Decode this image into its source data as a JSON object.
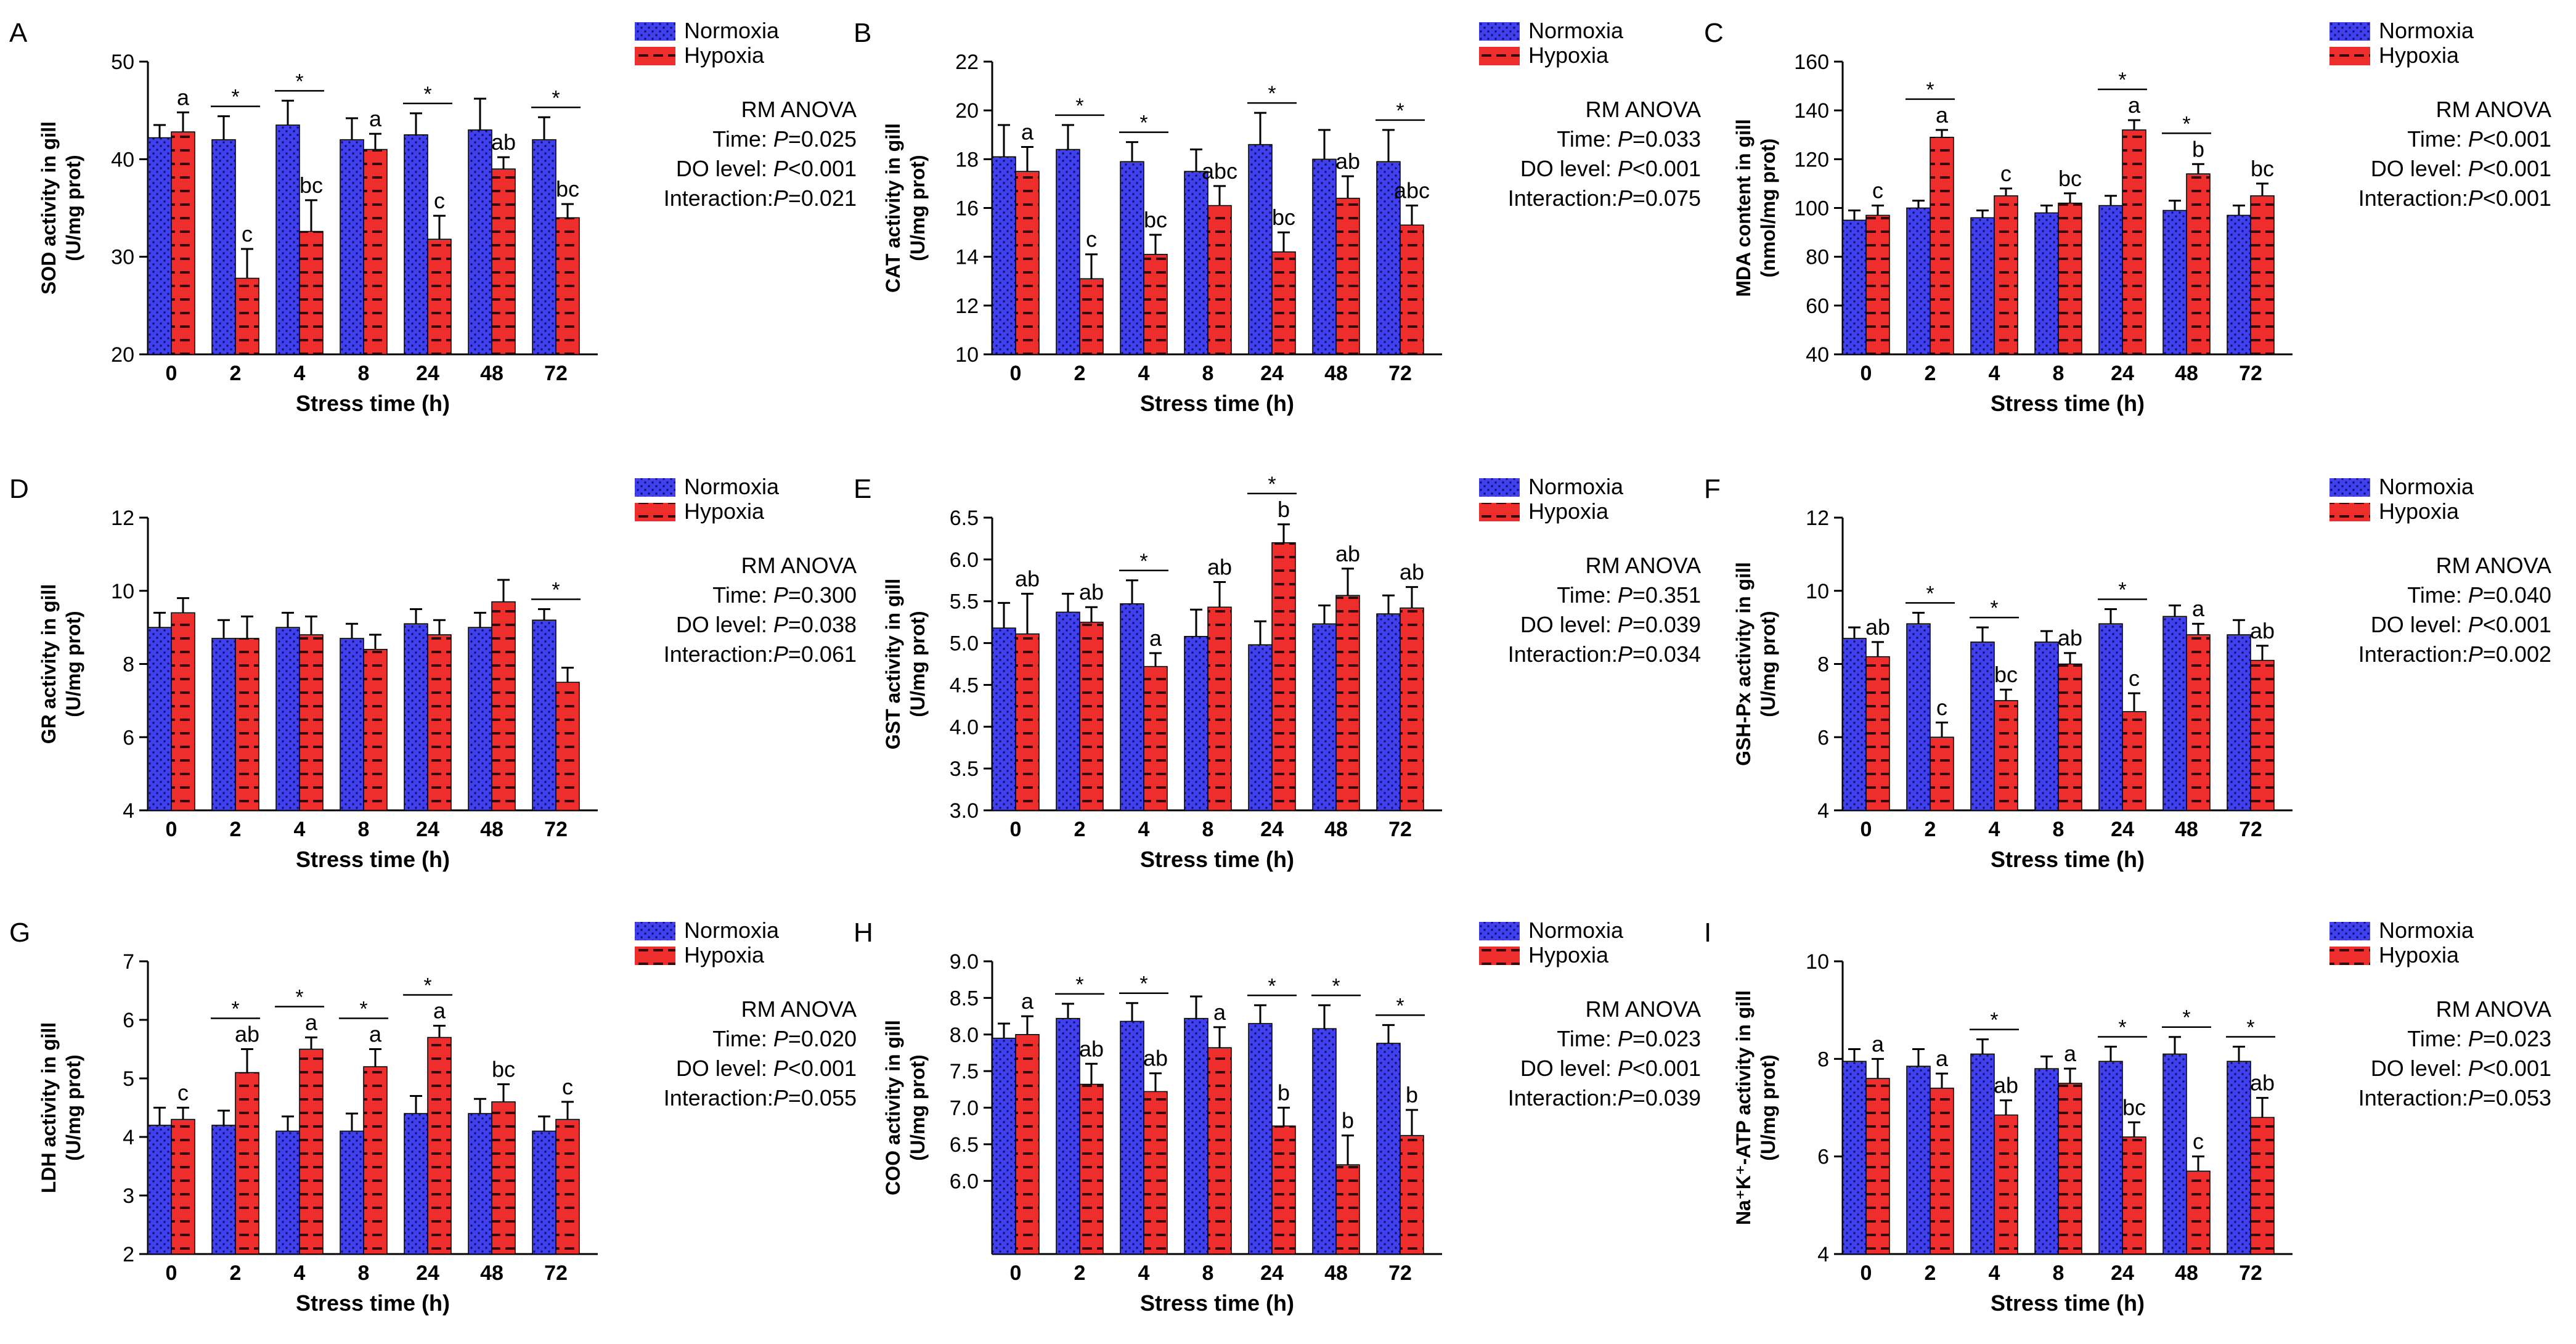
{
  "legend": {
    "normoxia_label": "Normoxia",
    "hypoxia_label": "Hypoxia"
  },
  "colors": {
    "normoxia": "#4040ee",
    "hypoxia": "#ee2d2d",
    "normoxia_dot": "#10106a",
    "hypoxia_stripe": "#3a0a0a"
  },
  "chart_data": [
    {
      "panel": "A",
      "type": "bar",
      "ylabel": "SOD activity in gill",
      "ylabel2": "(U/mg prot)",
      "xlabel": "Stress time (h)",
      "categories": [
        "0",
        "2",
        "4",
        "8",
        "24",
        "48",
        "72"
      ],
      "ylim": [
        20,
        50
      ],
      "yticks": [
        "20",
        "30",
        "40",
        "50"
      ],
      "series": [
        {
          "name": "Normoxia",
          "values": [
            42.2,
            42.0,
            43.5,
            42.0,
            42.5,
            43.0,
            42.0
          ],
          "errors": [
            1.3,
            2.4,
            2.5,
            2.2,
            2.2,
            3.2,
            2.3
          ]
        },
        {
          "name": "Hypoxia",
          "values": [
            42.8,
            27.8,
            32.6,
            41.0,
            31.8,
            39.0,
            34.0
          ],
          "errors": [
            2.0,
            3.0,
            3.2,
            1.6,
            2.4,
            1.2,
            1.4
          ]
        }
      ],
      "letters": [
        "a",
        "c",
        "bc",
        "a",
        "c",
        "ab",
        "bc"
      ],
      "significant": [
        false,
        true,
        true,
        false,
        true,
        false,
        true
      ],
      "stats_title": "RM ANOVA",
      "stats": [
        {
          "label": "Time: ",
          "p": "P",
          "value": "=0.025"
        },
        {
          "label": "DO level: ",
          "p": "P",
          "value": "<0.001"
        },
        {
          "label": "Interaction:",
          "p": "P",
          "value": "=0.021"
        }
      ]
    },
    {
      "panel": "B",
      "type": "bar",
      "ylabel": "CAT activity in gill",
      "ylabel2": "(U/mg prot)",
      "xlabel": "Stress time (h)",
      "categories": [
        "0",
        "2",
        "4",
        "8",
        "24",
        "48",
        "72"
      ],
      "ylim": [
        10,
        22
      ],
      "yticks": [
        "10",
        "12",
        "14",
        "16",
        "18",
        "20",
        "22"
      ],
      "series": [
        {
          "name": "Normoxia",
          "values": [
            18.1,
            18.4,
            17.9,
            17.5,
            18.6,
            18.0,
            17.9
          ],
          "errors": [
            1.3,
            1.0,
            0.8,
            0.9,
            1.3,
            1.2,
            1.3
          ]
        },
        {
          "name": "Hypoxia",
          "values": [
            17.5,
            13.1,
            14.1,
            16.1,
            14.2,
            16.4,
            15.3
          ],
          "errors": [
            1.0,
            1.0,
            0.8,
            0.8,
            0.8,
            0.9,
            0.8
          ]
        }
      ],
      "letters": [
        "a",
        "c",
        "bc",
        "abc",
        "bc",
        "ab",
        "abc"
      ],
      "significant": [
        false,
        true,
        true,
        false,
        true,
        false,
        true
      ],
      "stats_title": "RM ANOVA",
      "stats": [
        {
          "label": "Time: ",
          "p": "P",
          "value": "=0.033"
        },
        {
          "label": "DO level: ",
          "p": "P",
          "value": "<0.001"
        },
        {
          "label": "Interaction:",
          "p": "P",
          "value": "=0.075"
        }
      ]
    },
    {
      "panel": "C",
      "type": "bar",
      "ylabel": "MDA content in gill",
      "ylabel2": "(nmol/mg prot)",
      "xlabel": "Stress time (h)",
      "categories": [
        "0",
        "2",
        "4",
        "8",
        "24",
        "48",
        "72"
      ],
      "ylim": [
        40,
        160
      ],
      "yticks": [
        "40",
        "60",
        "80",
        "100",
        "120",
        "140",
        "160"
      ],
      "series": [
        {
          "name": "Normoxia",
          "values": [
            95,
            100,
            96,
            98,
            101,
            99,
            97
          ],
          "errors": [
            4,
            3,
            3,
            3,
            4,
            4,
            4
          ]
        },
        {
          "name": "Hypoxia",
          "values": [
            97,
            129,
            105,
            102,
            132,
            114,
            105
          ],
          "errors": [
            4,
            3,
            3,
            4,
            4,
            4,
            5
          ]
        }
      ],
      "letters": [
        "c",
        "a",
        "c",
        "bc",
        "a",
        "b",
        "bc"
      ],
      "significant": [
        false,
        true,
        false,
        false,
        true,
        true,
        false
      ],
      "stats_title": "RM ANOVA",
      "stats": [
        {
          "label": "Time: ",
          "p": "P",
          "value": "<0.001"
        },
        {
          "label": "DO level: ",
          "p": "P",
          "value": "<0.001"
        },
        {
          "label": "Interaction:",
          "p": "P",
          "value": "<0.001"
        }
      ]
    },
    {
      "panel": "D",
      "type": "bar",
      "ylabel": "GR activity in gill",
      "ylabel2": "(U/mg prot)",
      "xlabel": "Stress time (h)",
      "categories": [
        "0",
        "2",
        "4",
        "8",
        "24",
        "48",
        "72"
      ],
      "ylim": [
        4,
        12
      ],
      "yticks": [
        "4",
        "6",
        "8",
        "10",
        "12"
      ],
      "series": [
        {
          "name": "Normoxia",
          "values": [
            9.0,
            8.7,
            9.0,
            8.7,
            9.1,
            9.0,
            9.2
          ],
          "errors": [
            0.4,
            0.5,
            0.4,
            0.4,
            0.4,
            0.4,
            0.3
          ]
        },
        {
          "name": "Hypoxia",
          "values": [
            9.4,
            8.7,
            8.8,
            8.4,
            8.8,
            9.7,
            7.5
          ],
          "errors": [
            0.4,
            0.6,
            0.5,
            0.4,
            0.4,
            0.6,
            0.4
          ]
        }
      ],
      "letters": [
        "",
        "",
        "",
        "",
        "",
        "",
        ""
      ],
      "significant": [
        false,
        false,
        false,
        false,
        false,
        false,
        true
      ],
      "stats_title": "RM ANOVA",
      "stats": [
        {
          "label": "Time: ",
          "p": "P",
          "value": "=0.300"
        },
        {
          "label": "DO level: ",
          "p": "P",
          "value": "=0.038"
        },
        {
          "label": "Interaction:",
          "p": "P",
          "value": "=0.061"
        }
      ]
    },
    {
      "panel": "E",
      "type": "bar",
      "ylabel": "GST activity in gill",
      "ylabel2": "(U/mg prot)",
      "xlabel": "Stress time (h)",
      "categories": [
        "0",
        "2",
        "4",
        "8",
        "24",
        "48",
        "72"
      ],
      "ylim": [
        3.0,
        6.5
      ],
      "yticks": [
        "3.0",
        "3.5",
        "4.0",
        "4.5",
        "5.0",
        "5.5",
        "6.0",
        "6.5"
      ],
      "series": [
        {
          "name": "Normoxia",
          "values": [
            5.18,
            5.37,
            5.47,
            5.08,
            4.98,
            5.23,
            5.35
          ],
          "errors": [
            0.3,
            0.22,
            0.28,
            0.32,
            0.28,
            0.22,
            0.22
          ]
        },
        {
          "name": "Hypoxia",
          "values": [
            5.11,
            5.25,
            4.72,
            5.43,
            6.2,
            5.57,
            5.42
          ],
          "errors": [
            0.48,
            0.18,
            0.16,
            0.3,
            0.22,
            0.32,
            0.25
          ]
        }
      ],
      "letters": [
        "ab",
        "ab",
        "a",
        "ab",
        "b",
        "ab",
        "ab"
      ],
      "significant": [
        false,
        false,
        true,
        false,
        true,
        false,
        false
      ],
      "stats_title": "RM ANOVA",
      "stats": [
        {
          "label": "Time: ",
          "p": "P",
          "value": "=0.351"
        },
        {
          "label": "DO level: ",
          "p": "P",
          "value": "=0.039"
        },
        {
          "label": "Interaction:",
          "p": "P",
          "value": "=0.034"
        }
      ]
    },
    {
      "panel": "F",
      "type": "bar",
      "ylabel": "GSH-Px activity in gill",
      "ylabel2": "(U/mg prot)",
      "xlabel": "Stress time (h)",
      "categories": [
        "0",
        "2",
        "4",
        "8",
        "24",
        "48",
        "72"
      ],
      "ylim": [
        4,
        12
      ],
      "yticks": [
        "4",
        "6",
        "8",
        "10",
        "12"
      ],
      "series": [
        {
          "name": "Normoxia",
          "values": [
            8.7,
            9.1,
            8.6,
            8.6,
            9.1,
            9.3,
            8.8
          ],
          "errors": [
            0.3,
            0.3,
            0.4,
            0.3,
            0.4,
            0.3,
            0.4
          ]
        },
        {
          "name": "Hypoxia",
          "values": [
            8.2,
            6.0,
            7.0,
            8.0,
            6.7,
            8.8,
            8.1
          ],
          "errors": [
            0.4,
            0.4,
            0.3,
            0.3,
            0.5,
            0.3,
            0.4
          ]
        }
      ],
      "letters": [
        "ab",
        "c",
        "bc",
        "ab",
        "c",
        "a",
        "ab"
      ],
      "significant": [
        false,
        true,
        true,
        false,
        true,
        false,
        false
      ],
      "stats_title": "RM ANOVA",
      "stats": [
        {
          "label": "Time: ",
          "p": "P",
          "value": "=0.040"
        },
        {
          "label": "DO level: ",
          "p": "P",
          "value": "<0.001"
        },
        {
          "label": "Interaction:",
          "p": "P",
          "value": "=0.002"
        }
      ]
    },
    {
      "panel": "G",
      "type": "bar",
      "ylabel": "LDH activity in gill",
      "ylabel2": "(U/mg prot)",
      "xlabel": "Stress time (h)",
      "categories": [
        "0",
        "2",
        "4",
        "8",
        "24",
        "48",
        "72"
      ],
      "ylim": [
        2,
        7
      ],
      "yticks": [
        "2",
        "3",
        "4",
        "5",
        "6",
        "7"
      ],
      "series": [
        {
          "name": "Normoxia",
          "values": [
            4.2,
            4.2,
            4.1,
            4.1,
            4.4,
            4.4,
            4.1
          ],
          "errors": [
            0.3,
            0.25,
            0.25,
            0.3,
            0.3,
            0.25,
            0.25
          ]
        },
        {
          "name": "Hypoxia",
          "values": [
            4.3,
            5.1,
            5.5,
            5.2,
            5.7,
            4.6,
            4.3
          ],
          "errors": [
            0.2,
            0.4,
            0.2,
            0.3,
            0.2,
            0.3,
            0.3
          ]
        }
      ],
      "letters": [
        "c",
        "ab",
        "a",
        "a",
        "a",
        "bc",
        "c"
      ],
      "significant": [
        false,
        true,
        true,
        true,
        true,
        false,
        false
      ],
      "stats_title": "RM ANOVA",
      "stats": [
        {
          "label": "Time: ",
          "p": "P",
          "value": "=0.020"
        },
        {
          "label": "DO level: ",
          "p": "P",
          "value": "<0.001"
        },
        {
          "label": "Interaction:",
          "p": "P",
          "value": "=0.055"
        }
      ]
    },
    {
      "panel": "H",
      "type": "bar",
      "ylabel": "COO activity in gill",
      "ylabel2": "(U/mg prot)",
      "xlabel": "Stress time (h)",
      "categories": [
        "0",
        "2",
        "4",
        "8",
        "24",
        "48",
        "72"
      ],
      "ylim": [
        5.0,
        9.0
      ],
      "yticks": [
        "6.0",
        "6.5",
        "7.0",
        "7.5",
        "8.0",
        "8.5",
        "9.0"
      ],
      "series": [
        {
          "name": "Normoxia",
          "values": [
            7.95,
            8.22,
            8.18,
            8.22,
            8.15,
            8.08,
            7.88
          ],
          "errors": [
            0.2,
            0.2,
            0.25,
            0.3,
            0.25,
            0.32,
            0.25
          ]
        },
        {
          "name": "Hypoxia",
          "values": [
            8.0,
            7.32,
            7.22,
            7.82,
            6.75,
            6.22,
            6.62
          ],
          "errors": [
            0.25,
            0.28,
            0.25,
            0.28,
            0.25,
            0.4,
            0.35
          ]
        }
      ],
      "letters": [
        "a",
        "ab",
        "ab",
        "a",
        "b",
        "b",
        "b"
      ],
      "significant": [
        false,
        true,
        true,
        false,
        true,
        true,
        true
      ],
      "stats_title": "RM ANOVA",
      "stats": [
        {
          "label": "Time: ",
          "p": "P",
          "value": "=0.023"
        },
        {
          "label": "DO level: ",
          "p": "P",
          "value": "<0.001"
        },
        {
          "label": "Interaction:",
          "p": "P",
          "value": "=0.039"
        }
      ]
    },
    {
      "panel": "I",
      "type": "bar",
      "ylabel": "Na⁺K⁺-ATP activity in gill",
      "ylabel2": "(U/mg prot)",
      "xlabel": "Stress time (h)",
      "categories": [
        "0",
        "2",
        "4",
        "8",
        "24",
        "48",
        "72"
      ],
      "ylim": [
        4,
        10
      ],
      "yticks": [
        "4",
        "6",
        "8",
        "10"
      ],
      "series": [
        {
          "name": "Normoxia",
          "values": [
            7.95,
            7.85,
            8.1,
            7.8,
            7.95,
            8.1,
            7.95
          ],
          "errors": [
            0.25,
            0.35,
            0.3,
            0.25,
            0.3,
            0.35,
            0.3
          ]
        },
        {
          "name": "Hypoxia",
          "values": [
            7.6,
            7.4,
            6.85,
            7.5,
            6.4,
            5.7,
            6.8
          ],
          "errors": [
            0.4,
            0.3,
            0.3,
            0.3,
            0.3,
            0.3,
            0.4
          ]
        }
      ],
      "letters": [
        "a",
        "a",
        "ab",
        "a",
        "bc",
        "c",
        "ab"
      ],
      "significant": [
        false,
        false,
        true,
        false,
        true,
        true,
        true
      ],
      "stats_title": "RM ANOVA",
      "stats": [
        {
          "label": "Time: ",
          "p": "P",
          "value": "=0.023"
        },
        {
          "label": "DO level: ",
          "p": "P",
          "value": "<0.001"
        },
        {
          "label": "Interaction:",
          "p": "P",
          "value": "=0.053"
        }
      ]
    }
  ]
}
